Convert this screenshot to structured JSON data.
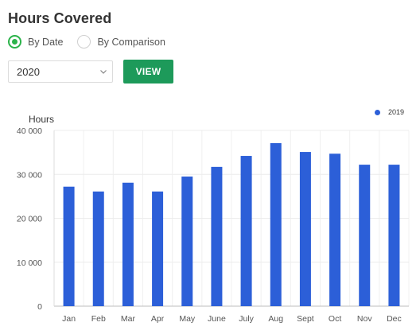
{
  "header": {
    "title": "Hours Covered"
  },
  "mode": {
    "options": [
      {
        "label": "By Date",
        "checked": true
      },
      {
        "label": "By Comparison",
        "checked": false
      }
    ]
  },
  "year_select": {
    "value": "2020"
  },
  "view_button": {
    "label": "VIEW"
  },
  "colors": {
    "accent": "#1d9a5a",
    "radio": "#2bb34a",
    "bar": "#2c5fd8"
  },
  "chart_data": {
    "type": "bar",
    "categories": [
      "Jan",
      "Feb",
      "Mar",
      "Apr",
      "May",
      "June",
      "July",
      "Aug",
      "Sept",
      "Oct",
      "Nov",
      "Dec"
    ],
    "series": [
      {
        "name": "2019",
        "values": [
          27200,
          26100,
          28100,
          26100,
          29500,
          31700,
          34200,
          37100,
          35100,
          34700,
          32200,
          32200
        ]
      }
    ],
    "title": "",
    "xlabel": "",
    "ylabel": "Hours",
    "ylim": [
      0,
      40000
    ],
    "yticks": [
      {
        "value": 0,
        "label": "0"
      },
      {
        "value": 10000,
        "label": "10 000"
      },
      {
        "value": 20000,
        "label": "20 000"
      },
      {
        "value": 30000,
        "label": "30 000"
      },
      {
        "value": 40000,
        "label": "40 000"
      }
    ],
    "grid": true,
    "legend": "top-right"
  }
}
